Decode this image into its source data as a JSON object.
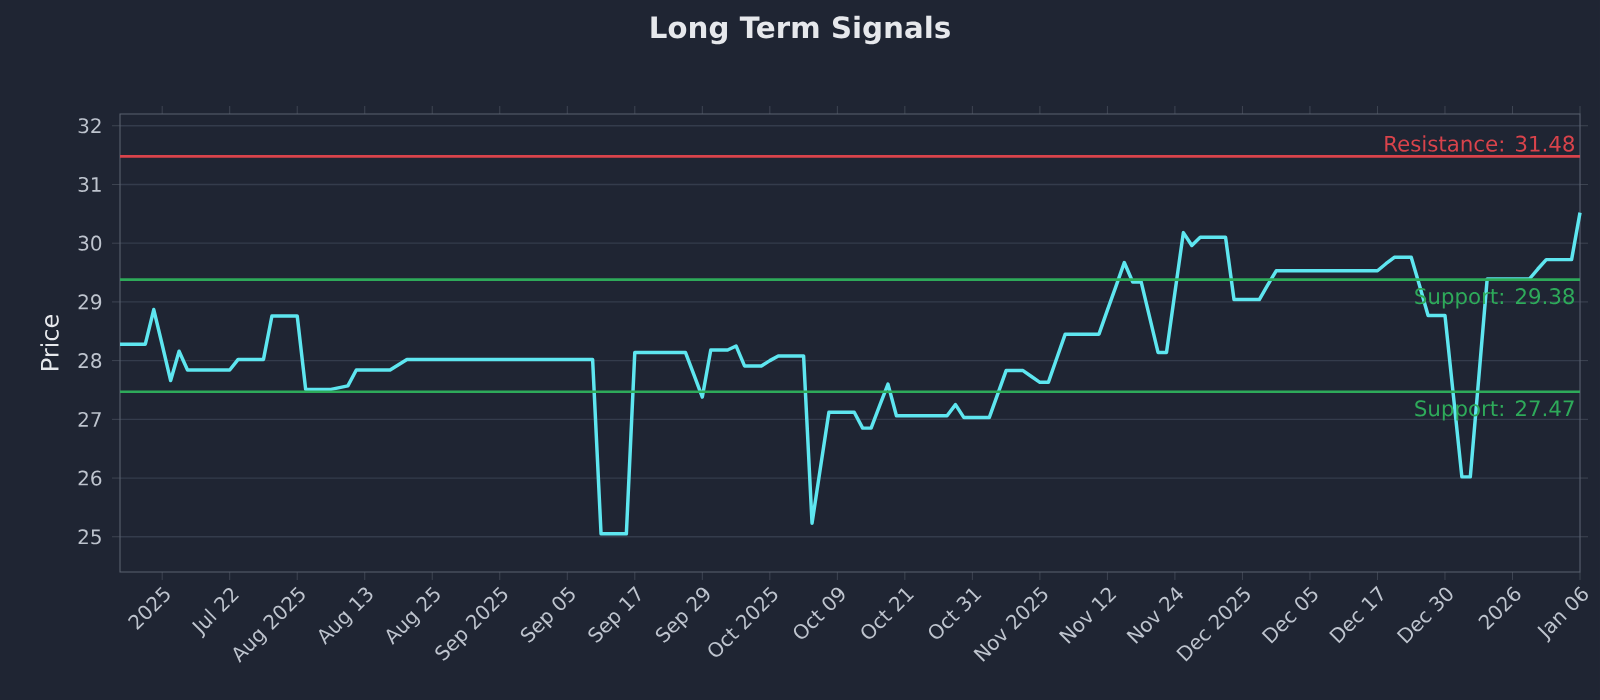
{
  "chart_data": {
    "type": "line",
    "title": "Long Term Signals",
    "ylabel": "Price",
    "categories": [
      null,
      null,
      null,
      null,
      null,
      "2025",
      null,
      null,
      null,
      null,
      null,
      null,
      null,
      "Jul 22",
      null,
      null,
      null,
      null,
      null,
      null,
      null,
      "Aug 2025",
      null,
      null,
      null,
      null,
      null,
      null,
      null,
      "Aug 13",
      null,
      null,
      null,
      null,
      null,
      null,
      null,
      "Aug 25",
      null,
      null,
      null,
      null,
      null,
      null,
      null,
      "Sep 2025",
      null,
      null,
      null,
      null,
      null,
      null,
      null,
      "Sep 05",
      null,
      null,
      null,
      null,
      null,
      null,
      null,
      "Sep 17",
      null,
      null,
      null,
      null,
      null,
      null,
      null,
      "Sep 29",
      null,
      null,
      null,
      null,
      null,
      null,
      null,
      "Oct 2025",
      null,
      null,
      null,
      null,
      null,
      null,
      null,
      "Oct 09",
      null,
      null,
      null,
      null,
      null,
      null,
      null,
      "Oct 21",
      null,
      null,
      null,
      null,
      null,
      null,
      null,
      "Oct 31",
      null,
      null,
      null,
      null,
      null,
      null,
      null,
      "Nov 2025",
      null,
      null,
      null,
      null,
      null,
      null,
      null,
      "Nov 12",
      null,
      null,
      null,
      null,
      null,
      null,
      null,
      "Nov 24",
      null,
      null,
      null,
      null,
      null,
      null,
      null,
      "Dec 2025",
      null,
      null,
      null,
      null,
      null,
      null,
      null,
      "Dec 05",
      null,
      null,
      null,
      null,
      null,
      null,
      null,
      "Dec 17",
      null,
      null,
      null,
      null,
      null,
      null,
      null,
      "Dec 30",
      null,
      null,
      null,
      null,
      null,
      null,
      null,
      "2026",
      null,
      null,
      null,
      null,
      null,
      null,
      null,
      "Jan 06"
    ],
    "series": [
      {
        "color": "#5ee6f0",
        "values": [
          28.28,
          28.28,
          28.28,
          28.28,
          28.87,
          28.27,
          27.66,
          28.16,
          27.84,
          27.84,
          27.84,
          27.84,
          27.84,
          27.84,
          28.02,
          28.02,
          28.02,
          28.02,
          28.76,
          28.76,
          28.76,
          28.76,
          27.51,
          27.51,
          27.51,
          27.51,
          27.54,
          27.57,
          27.84,
          27.84,
          27.84,
          27.84,
          27.84,
          27.93,
          28.02,
          28.02,
          28.02,
          28.02,
          28.02,
          28.02,
          28.02,
          28.02,
          28.02,
          28.02,
          28.02,
          28.02,
          28.02,
          28.02,
          28.02,
          28.02,
          28.02,
          28.02,
          28.02,
          28.02,
          28.02,
          28.02,
          28.02,
          25.05,
          25.05,
          25.05,
          25.05,
          28.14,
          28.14,
          28.14,
          28.14,
          28.14,
          28.14,
          28.14,
          27.76,
          27.38,
          28.18,
          28.18,
          28.18,
          28.25,
          27.91,
          27.91,
          27.91,
          28.0,
          28.08,
          28.08,
          28.08,
          28.08,
          25.23,
          26.18,
          27.12,
          27.12,
          27.12,
          27.12,
          26.85,
          26.85,
          27.23,
          27.6,
          27.06,
          27.06,
          27.06,
          27.06,
          27.06,
          27.06,
          27.06,
          27.25,
          27.03,
          27.03,
          27.03,
          27.03,
          27.43,
          27.83,
          27.83,
          27.83,
          27.73,
          27.63,
          27.63,
          28.04,
          28.45,
          28.45,
          28.45,
          28.45,
          28.45,
          28.86,
          29.26,
          29.67,
          29.34,
          29.34,
          28.74,
          28.14,
          28.14,
          29.16,
          30.18,
          29.96,
          30.1,
          30.1,
          30.1,
          30.1,
          29.04,
          29.04,
          29.04,
          29.04,
          29.29,
          29.53,
          29.53,
          29.53,
          29.53,
          29.53,
          29.53,
          29.53,
          29.53,
          29.53,
          29.53,
          29.53,
          29.53,
          29.53,
          29.65,
          29.76,
          29.76,
          29.76,
          29.27,
          28.77,
          28.77,
          28.77,
          27.4,
          26.02,
          26.02,
          27.7,
          29.39,
          29.39,
          29.39,
          29.39,
          29.39,
          29.39,
          29.56,
          29.72,
          29.72,
          29.72,
          29.72,
          30.52
        ]
      }
    ],
    "ylim": [
      24.4,
      32.2
    ],
    "yticks": [
      25,
      26,
      27,
      28,
      29,
      30,
      31,
      32
    ],
    "grid": "y",
    "ref_lines": [
      {
        "axis": "y",
        "value": 31.48,
        "label": "Resistance: 31.48",
        "color": "#d9434b"
      },
      {
        "axis": "y",
        "value": 29.38,
        "label": "Support: 29.38",
        "color": "#2eaa5a"
      },
      {
        "axis": "y",
        "value": 27.47,
        "label": "Support: 27.47",
        "color": "#2eaa5a"
      }
    ]
  }
}
